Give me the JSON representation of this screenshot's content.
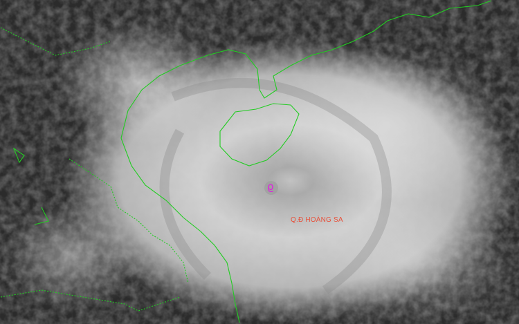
{
  "map": {
    "labels": [
      {
        "text": "Q.Đ HOÀNG SA"
      }
    ],
    "storm_symbol": "typhoon-icon",
    "colors": {
      "coastline": "#22cc22",
      "label": "#e8503a",
      "storm_symbol": "#e020e0"
    }
  }
}
